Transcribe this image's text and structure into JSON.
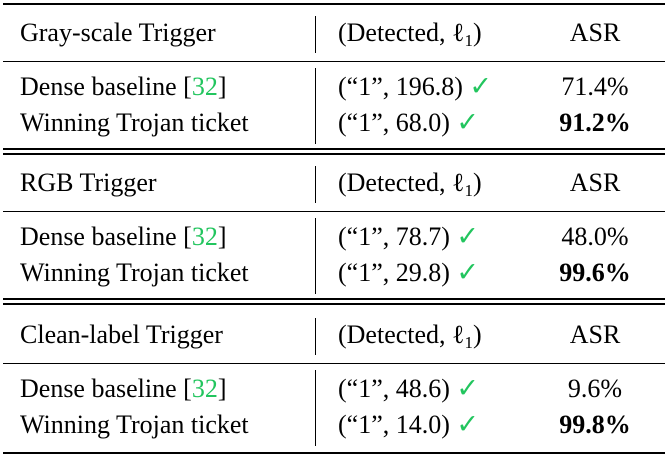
{
  "table": {
    "sections": [
      {
        "header": {
          "trigger": "Gray-scale Trigger",
          "detected": "(Detected, ℓ",
          "detected_sub": "1",
          "detected_close": ")",
          "asr": "ASR"
        },
        "rows": [
          {
            "method": "Dense baseline [",
            "ref": "32",
            "ref_close": "]",
            "detected": "(“1”, 196.8)",
            "check": "✓",
            "asr_int": "71",
            "asr_dec": ".4%",
            "asr_bold": false
          },
          {
            "method": "Winning Trojan ticket",
            "detected": "(“1”, 68.0)",
            "check": "✓",
            "asr_int": "91",
            "asr_dec": ".2%",
            "asr_bold": true
          }
        ]
      },
      {
        "header": {
          "trigger": "RGB Trigger",
          "detected": "(Detected, ℓ",
          "detected_sub": "1",
          "detected_close": ")",
          "asr": "ASR"
        },
        "rows": [
          {
            "method": "Dense baseline [",
            "ref": "32",
            "ref_close": "]",
            "detected": "(“1”, 78.7)",
            "check": "✓",
            "asr_int": "48",
            "asr_dec": ".0%",
            "asr_bold": false
          },
          {
            "method": "Winning Trojan ticket",
            "detected": "(“1”, 29.8)",
            "check": "✓",
            "asr_int": "99",
            "asr_dec": ".6%",
            "asr_bold": true
          }
        ]
      },
      {
        "header": {
          "trigger": "Clean-label Trigger",
          "detected": "(Detected, ℓ",
          "detected_sub": "1",
          "detected_close": ")",
          "asr": "ASR"
        },
        "rows": [
          {
            "method": "Dense baseline [",
            "ref": "32",
            "ref_close": "]",
            "detected": "(“1”, 48.6)",
            "check": "✓",
            "asr_int": "9",
            "asr_dec": ".6%",
            "asr_bold": false
          },
          {
            "method": "Winning Trojan ticket",
            "detected": "(“1”, 14.0)",
            "check": "✓",
            "asr_int": "99",
            "asr_dec": ".8%",
            "asr_bold": true
          }
        ]
      }
    ]
  },
  "colors": {
    "check": "#22c55e",
    "ref_link": "#22c55e"
  }
}
